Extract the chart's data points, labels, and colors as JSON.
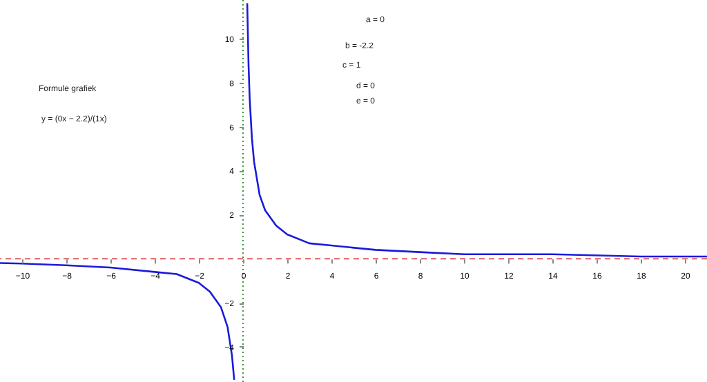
{
  "chart_data": {
    "type": "line",
    "x": [
      -11,
      -10,
      -8,
      -6,
      -4,
      -3,
      -2,
      -1.5,
      -1,
      -0.7,
      -0.5,
      -0.4,
      0,
      0.19,
      0.25,
      0.3,
      0.4,
      0.5,
      0.75,
      1,
      1.5,
      2,
      3,
      4,
      6,
      8,
      10,
      14,
      18,
      21
    ],
    "series": [
      {
        "color": "#1a1adc",
        "values": [
          -0.2,
          -0.22,
          -0.3,
          -0.4,
          -0.6,
          -0.7,
          -1.1,
          -1.5,
          -2.2,
          -3.1,
          -4.4,
          -5.5,
          null,
          11.6,
          8.8,
          7.3,
          5.5,
          4.4,
          2.9,
          2.2,
          1.5,
          1.1,
          0.7,
          0.6,
          0.4,
          0.3,
          0.2,
          0.2,
          0.1,
          0.1
        ]
      }
    ],
    "xlim": [
      -11,
      21
    ],
    "ylim": [
      -5.6,
      11.75
    ],
    "xticks": [
      -10,
      -8,
      -6,
      -4,
      -2,
      0,
      2,
      4,
      6,
      8,
      10,
      12,
      14,
      16,
      18,
      20
    ],
    "yticks": [
      -4,
      -2,
      2,
      4,
      6,
      8,
      10
    ],
    "grid": false,
    "marker": "none",
    "line_style": "solid",
    "ref_lines": [
      {
        "axis": "y",
        "value": 0,
        "color": "#e06060",
        "line_style": "dashed"
      },
      {
        "axis": "x",
        "value": 0,
        "color": "#3a9a3a",
        "line_style": "dotted"
      }
    ],
    "annotations": [
      "Formule grafiek",
      "y = (0x − 2.2)/(1x)",
      "a = 0",
      "b = -2.2",
      "c = 1",
      "d = 0",
      "e = 0"
    ]
  }
}
